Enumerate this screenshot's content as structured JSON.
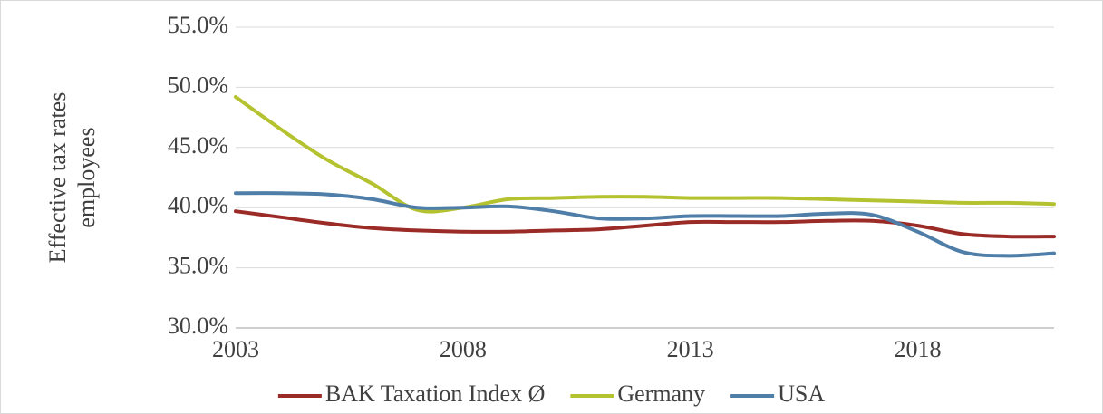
{
  "chart_data": {
    "type": "line",
    "y_label": [
      "Effective tax rates",
      "employees"
    ],
    "x": [
      2003,
      2004,
      2005,
      2006,
      2007,
      2008,
      2009,
      2010,
      2011,
      2012,
      2013,
      2014,
      2015,
      2016,
      2017,
      2018,
      2019,
      2020,
      2021
    ],
    "series": [
      {
        "name": "BAK Taxation Index Ø",
        "color": "#9b2b26",
        "values": [
          39.7,
          39.2,
          38.7,
          38.3,
          38.1,
          38.0,
          38.0,
          38.1,
          38.2,
          38.5,
          38.8,
          38.8,
          38.8,
          38.9,
          38.9,
          38.5,
          37.8,
          37.6,
          37.6
        ]
      },
      {
        "name": "Germany",
        "color": "#b5c22f",
        "values": [
          49.2,
          46.5,
          44.0,
          42.0,
          39.8,
          40.0,
          40.7,
          40.8,
          40.9,
          40.9,
          40.8,
          40.8,
          40.8,
          40.7,
          40.6,
          40.5,
          40.4,
          40.4,
          40.3
        ]
      },
      {
        "name": "USA",
        "color": "#4f7ea8",
        "values": [
          41.2,
          41.2,
          41.1,
          40.7,
          40.0,
          40.0,
          40.1,
          39.7,
          39.1,
          39.1,
          39.3,
          39.3,
          39.3,
          39.5,
          39.4,
          38.0,
          36.3,
          36.0,
          36.2
        ]
      }
    ],
    "xlim": [
      2003,
      2021
    ],
    "xticks": [
      2003,
      2008,
      2013,
      2018
    ],
    "ylim": [
      30,
      55
    ],
    "yticks": [
      {
        "value": 30,
        "label": "30.0%"
      },
      {
        "value": 35,
        "label": "35.0%"
      },
      {
        "value": 40,
        "label": "40.0%"
      },
      {
        "value": 45,
        "label": "45.0%"
      },
      {
        "value": 50,
        "label": "50.0%"
      },
      {
        "value": 55,
        "label": "55.0%"
      }
    ],
    "grid": true,
    "legend": "bottom"
  }
}
